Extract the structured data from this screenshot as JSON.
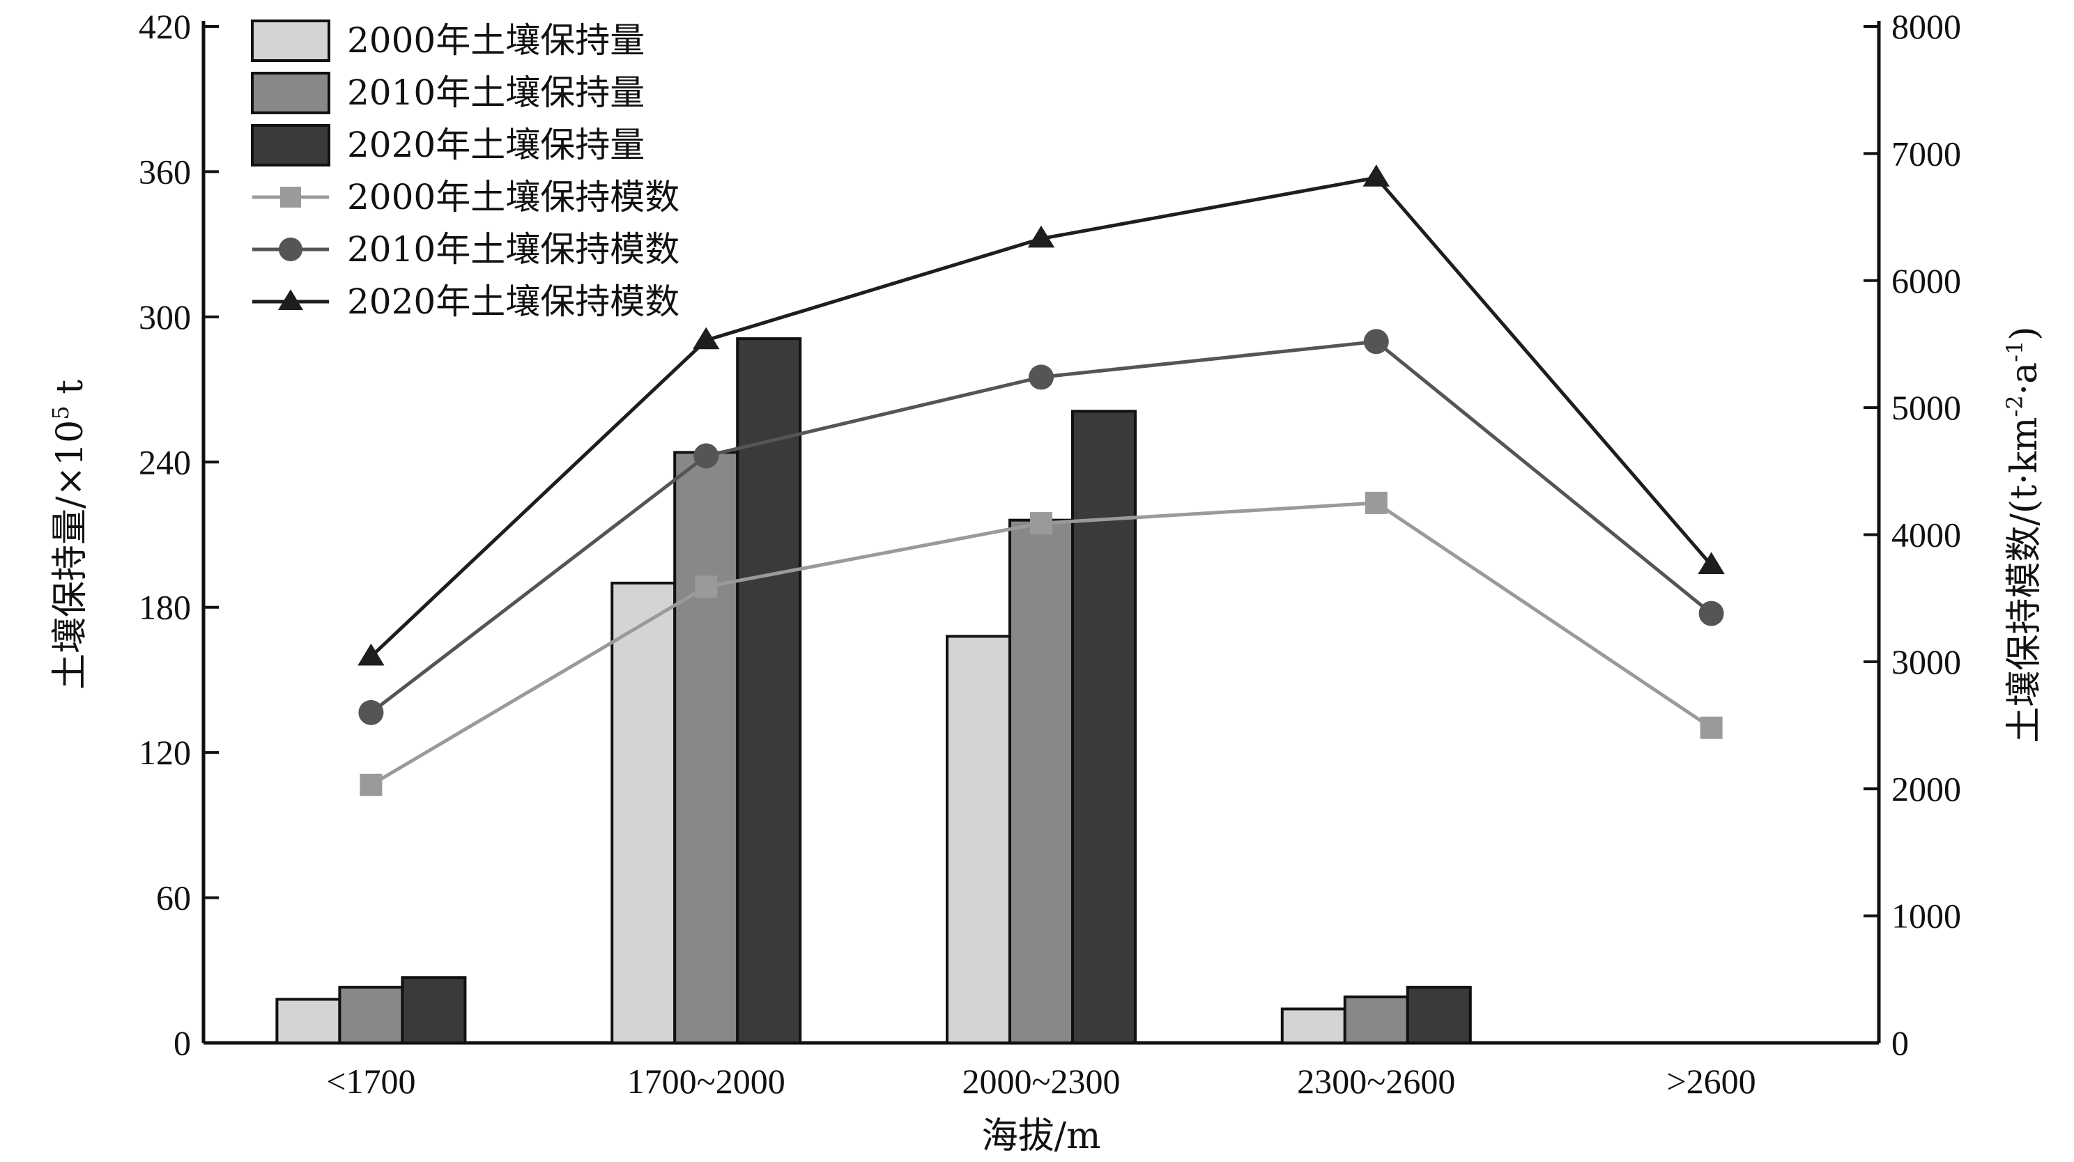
{
  "chart_data": {
    "type": "bar",
    "categories": [
      "<1700",
      "1700~2000",
      "2000~2300",
      "2300~2600",
      ">2600"
    ],
    "xlabel": "海拔/m",
    "ylabel_left_main": "土壤保持量/×10",
    "ylabel_left_sup": "5",
    "ylabel_left_unit": " t",
    "ylabel_right_main": "土壤保持模数/(t·km",
    "ylabel_right_sup1": "-2",
    "ylabel_right_mid": "·a",
    "ylabel_right_sup2": "-1",
    "ylabel_right_end": ")",
    "ylim_left": [
      0,
      420
    ],
    "yticks_left": [
      "0",
      "60",
      "120",
      "180",
      "240",
      "300",
      "360",
      "420"
    ],
    "ylim_right": [
      0,
      8000
    ],
    "yticks_right": [
      "0",
      "1000",
      "2000",
      "3000",
      "4000",
      "5000",
      "6000",
      "7000",
      "8000"
    ],
    "legend_position": "top-left",
    "grid": false,
    "bar_series": [
      {
        "name": "2000年土壤保持量",
        "color": "#d4d4d4",
        "values": [
          18,
          190,
          168,
          14,
          0
        ]
      },
      {
        "name": "2010年土壤保持量",
        "color": "#888888",
        "values": [
          23,
          244,
          216,
          19,
          0
        ]
      },
      {
        "name": "2020年土壤保持量",
        "color": "#3a3a3a",
        "values": [
          27,
          291,
          261,
          23,
          0
        ]
      }
    ],
    "line_series": [
      {
        "name": "2000年土壤保持模数",
        "color": "#9a9a9a",
        "marker": "square",
        "values": [
          2030,
          3590,
          4090,
          4250,
          2480
        ]
      },
      {
        "name": "2010年土壤保持模数",
        "color": "#555555",
        "marker": "circle",
        "values": [
          2600,
          4620,
          5240,
          5520,
          3380
        ]
      },
      {
        "name": "2020年土壤保持模数",
        "color": "#1e1e1e",
        "marker": "triangle",
        "values": [
          3040,
          5530,
          6330,
          6810,
          3760
        ]
      }
    ]
  }
}
